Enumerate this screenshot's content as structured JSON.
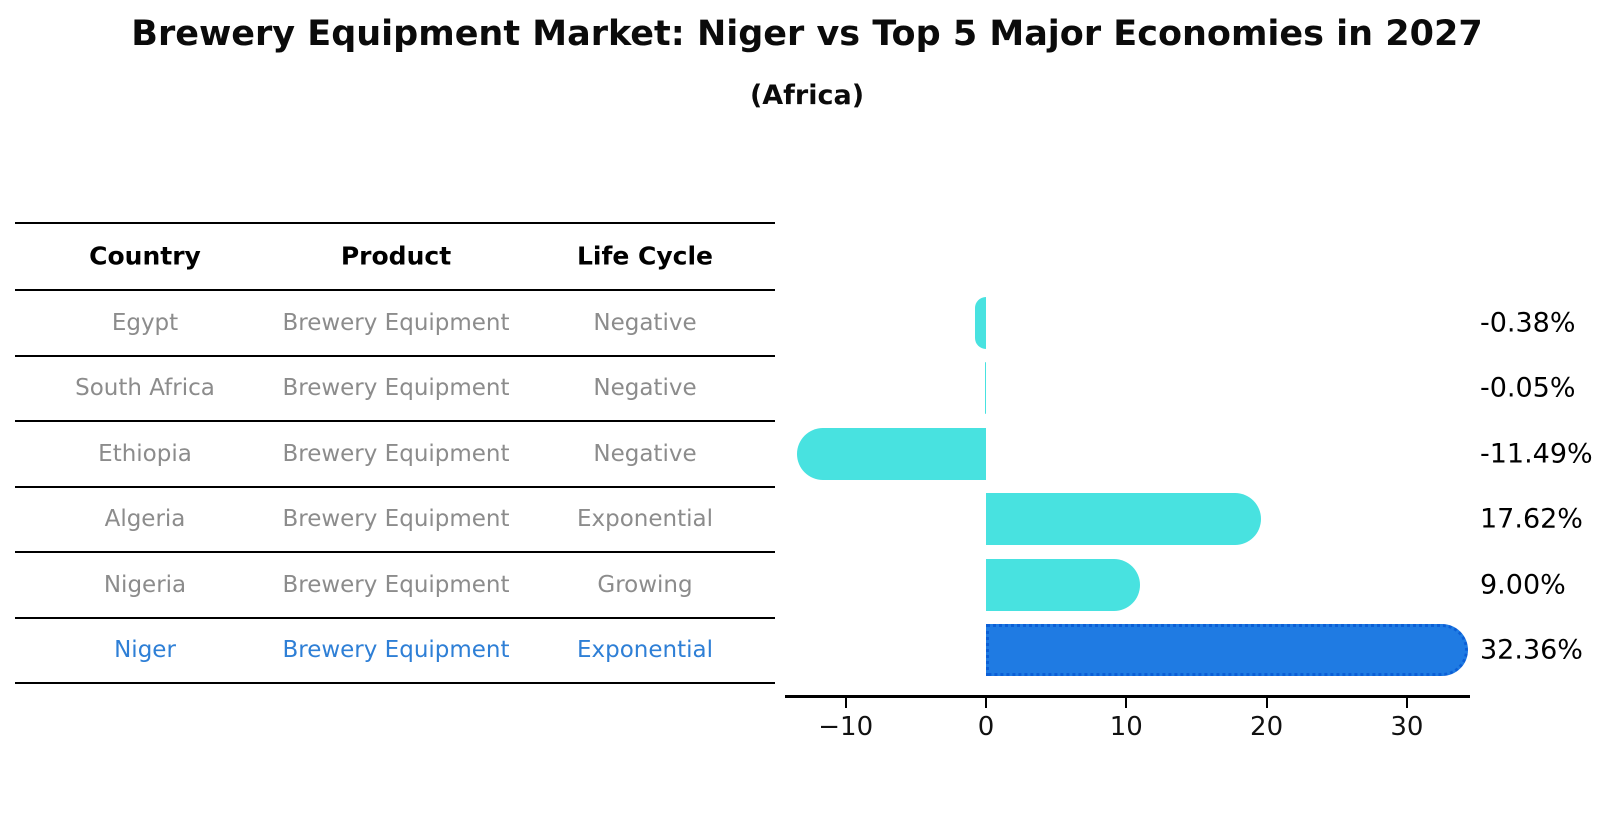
{
  "title": "Brewery Equipment Market: Niger vs Top 5 Major Economies in 2027",
  "subtitle": "(Africa)",
  "colors": {
    "bar_default": "#48e2e0",
    "bar_highlight": "#1f7be3",
    "bar_highlight_border": "#0c5fd6",
    "highlight_text": "#2e7fd6",
    "cell_text": "#8c8c8c",
    "axis": "#000000",
    "background": "#ffffff"
  },
  "table": {
    "headers": [
      "Country",
      "Product",
      "Life Cycle"
    ],
    "rows": [
      {
        "country": "Egypt",
        "product": "Brewery Equipment",
        "life_cycle": "Negative",
        "highlighted": false
      },
      {
        "country": "South Africa",
        "product": "Brewery Equipment",
        "life_cycle": "Negative",
        "highlighted": false
      },
      {
        "country": "Ethiopia",
        "product": "Brewery Equipment",
        "life_cycle": "Negative",
        "highlighted": false
      },
      {
        "country": "Algeria",
        "product": "Brewery Equipment",
        "life_cycle": "Exponential",
        "highlighted": false
      },
      {
        "country": "Nigeria",
        "product": "Brewery Equipment",
        "life_cycle": "Growing",
        "highlighted": false
      },
      {
        "country": "Niger",
        "product": "Brewery Equipment",
        "life_cycle": "Exponential",
        "highlighted": true
      }
    ]
  },
  "chart_data": {
    "type": "bar",
    "orientation": "horizontal",
    "title": "Brewery Equipment Market: Niger vs Top 5 Major Economies in 2027",
    "subtitle": "(Africa)",
    "categories": [
      "Egypt",
      "South Africa",
      "Ethiopia",
      "Algeria",
      "Nigeria",
      "Niger"
    ],
    "values": [
      -0.38,
      -0.05,
      -11.49,
      17.62,
      9.0,
      32.36
    ],
    "value_labels": [
      "-0.38%",
      "-0.05%",
      "-11.49%",
      "17.62%",
      "9.00%",
      "32.36%"
    ],
    "highlight_index": 5,
    "xlabel": "",
    "ylabel": "",
    "xticks": [
      -10,
      0,
      10,
      20,
      30
    ],
    "xtick_labels": [
      "−10",
      "0",
      "10",
      "20",
      "30"
    ],
    "xlim": [
      -14.3,
      34.5
    ],
    "grid": false,
    "legend": null
  }
}
